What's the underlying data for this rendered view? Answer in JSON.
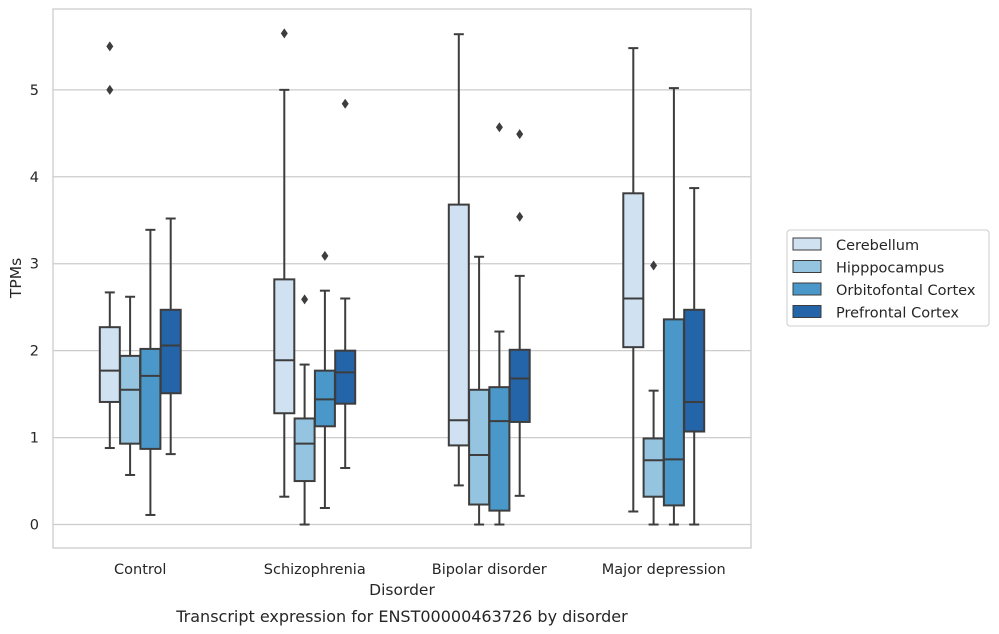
{
  "caption": "Transcript expression for ENST00000463726 by disorder",
  "chart_data": {
    "type": "box",
    "xlabel": "Disorder",
    "ylabel": "TPMs",
    "ylim": [
      -0.27,
      5.93
    ],
    "yticks": [
      0,
      1,
      2,
      3,
      4,
      5
    ],
    "grid": "horizontal",
    "legend_position": "right",
    "categories": [
      "Control",
      "Schizophrenia",
      "Bipolar disorder",
      "Major depression"
    ],
    "series": [
      {
        "name": "Cerebellum",
        "color": "#d0e1f2",
        "boxes": [
          {
            "whisker_low": 0.88,
            "q1": 1.41,
            "median": 1.77,
            "q3": 2.27,
            "whisker_high": 2.67,
            "fliers": [
              5.5,
              5.0
            ]
          },
          {
            "whisker_low": 0.32,
            "q1": 1.28,
            "median": 1.89,
            "q3": 2.82,
            "whisker_high": 5.0,
            "fliers": [
              5.65
            ]
          },
          {
            "whisker_low": 0.45,
            "q1": 0.91,
            "median": 1.2,
            "q3": 3.68,
            "whisker_high": 5.64,
            "fliers": []
          },
          {
            "whisker_low": 0.15,
            "q1": 2.04,
            "median": 2.6,
            "q3": 3.81,
            "whisker_high": 5.48,
            "fliers": []
          }
        ]
      },
      {
        "name": "Hipppocampus",
        "color": "#94c4df",
        "boxes": [
          {
            "whisker_low": 0.57,
            "q1": 0.93,
            "median": 1.55,
            "q3": 1.94,
            "whisker_high": 2.62,
            "fliers": []
          },
          {
            "whisker_low": 0.0,
            "q1": 0.5,
            "median": 0.93,
            "q3": 1.22,
            "whisker_high": 1.84,
            "fliers": [
              2.59
            ]
          },
          {
            "whisker_low": 0.0,
            "q1": 0.23,
            "median": 0.8,
            "q3": 1.55,
            "whisker_high": 3.08,
            "fliers": []
          },
          {
            "whisker_low": 0.0,
            "q1": 0.32,
            "median": 0.74,
            "q3": 0.99,
            "whisker_high": 1.54,
            "fliers": [
              2.98
            ]
          }
        ]
      },
      {
        "name": "Orbitofontal Cortex",
        "color": "#4a98c9",
        "boxes": [
          {
            "whisker_low": 0.11,
            "q1": 0.87,
            "median": 1.71,
            "q3": 2.02,
            "whisker_high": 3.39,
            "fliers": []
          },
          {
            "whisker_low": 0.19,
            "q1": 1.13,
            "median": 1.44,
            "q3": 1.77,
            "whisker_high": 2.69,
            "fliers": [
              3.09
            ]
          },
          {
            "whisker_low": 0.0,
            "q1": 0.16,
            "median": 1.19,
            "q3": 1.58,
            "whisker_high": 2.22,
            "fliers": [
              4.57
            ]
          },
          {
            "whisker_low": 0.0,
            "q1": 0.22,
            "median": 0.75,
            "q3": 2.36,
            "whisker_high": 5.02,
            "fliers": []
          }
        ]
      },
      {
        "name": "Prefrontal Cortex",
        "color": "#2464a9",
        "boxes": [
          {
            "whisker_low": 0.81,
            "q1": 1.51,
            "median": 2.06,
            "q3": 2.47,
            "whisker_high": 3.52,
            "fliers": []
          },
          {
            "whisker_low": 0.65,
            "q1": 1.39,
            "median": 1.75,
            "q3": 2.0,
            "whisker_high": 2.6,
            "fliers": [
              4.84
            ]
          },
          {
            "whisker_low": 0.33,
            "q1": 1.18,
            "median": 1.68,
            "q3": 2.01,
            "whisker_high": 2.86,
            "fliers": [
              3.54,
              4.49
            ]
          },
          {
            "whisker_low": 0.0,
            "q1": 1.07,
            "median": 1.41,
            "q3": 2.47,
            "whisker_high": 3.87,
            "fliers": []
          }
        ]
      }
    ]
  }
}
